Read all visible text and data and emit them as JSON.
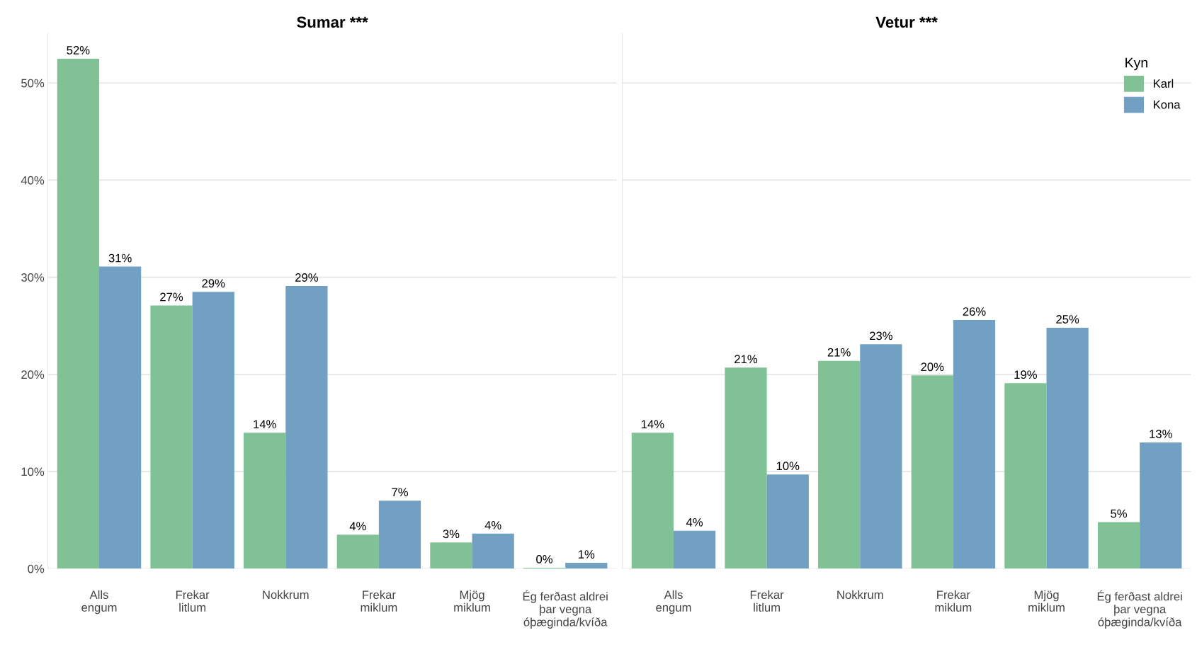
{
  "chart_data": [
    {
      "type": "bar",
      "title": "Sumar ***",
      "categories": [
        "Alls\nengum",
        "Frekar\nlitlum",
        "Nokkrum",
        "Frekar\nmiklum",
        "Mjög\nmiklum",
        "Ég ferðast aldrei\nþar vegna\nóþæginda/kvíða"
      ],
      "series": [
        {
          "name": "Karl",
          "color": "#80c295",
          "values": [
            52.5,
            27.1,
            14.0,
            3.5,
            2.7,
            0.1
          ],
          "value_labels": [
            "52%",
            "27%",
            "14%",
            "4%",
            "3%",
            "0%"
          ]
        },
        {
          "name": "Kona",
          "color": "#71a0c2",
          "values": [
            31.1,
            28.5,
            29.1,
            7.0,
            3.6,
            0.6
          ],
          "value_labels": [
            "31%",
            "29%",
            "29%",
            "7%",
            "4%",
            "1%"
          ]
        }
      ],
      "ylim": [
        0,
        55.1
      ],
      "yticks": [
        {
          "value": 0,
          "label": "0%"
        },
        {
          "value": 10,
          "label": "10%"
        },
        {
          "value": 20,
          "label": "20%"
        },
        {
          "value": 30,
          "label": "30%"
        },
        {
          "value": 40,
          "label": "40%"
        },
        {
          "value": 50,
          "label": "50%"
        }
      ],
      "grid": "y",
      "legend": "top right",
      "legend_title": "Kyn"
    },
    {
      "type": "bar",
      "title": "Vetur ***",
      "categories": [
        "Alls\nengum",
        "Frekar\nlitlum",
        "Nokkrum",
        "Frekar\nmiklum",
        "Mjög\nmiklum",
        "Ég ferðast aldrei\nþar vegna\nóþæginda/kvíða"
      ],
      "series": [
        {
          "color": "#80c295",
          "values": [
            14.0,
            20.7,
            21.4,
            19.9,
            19.1,
            4.8
          ],
          "value_labels": [
            "14%",
            "21%",
            "21%",
            "20%",
            "19%",
            "5%"
          ]
        },
        {
          "color": "#71a0c2",
          "values": [
            3.9,
            9.7,
            23.1,
            25.6,
            24.8,
            13.0
          ],
          "value_labels": [
            "4%",
            "10%",
            "23%",
            "26%",
            "25%",
            "13%"
          ]
        }
      ],
      "ylim": [
        0,
        55.1
      ],
      "yticks": [
        {
          "value": 0,
          "label": null
        },
        {
          "value": 10,
          "label": null
        },
        {
          "value": 20,
          "label": null
        },
        {
          "value": 30,
          "label": null
        },
        {
          "value": 40,
          "label": null
        },
        {
          "value": 50,
          "label": null
        }
      ],
      "grid": "y",
      "tick_labels": "x"
    }
  ]
}
